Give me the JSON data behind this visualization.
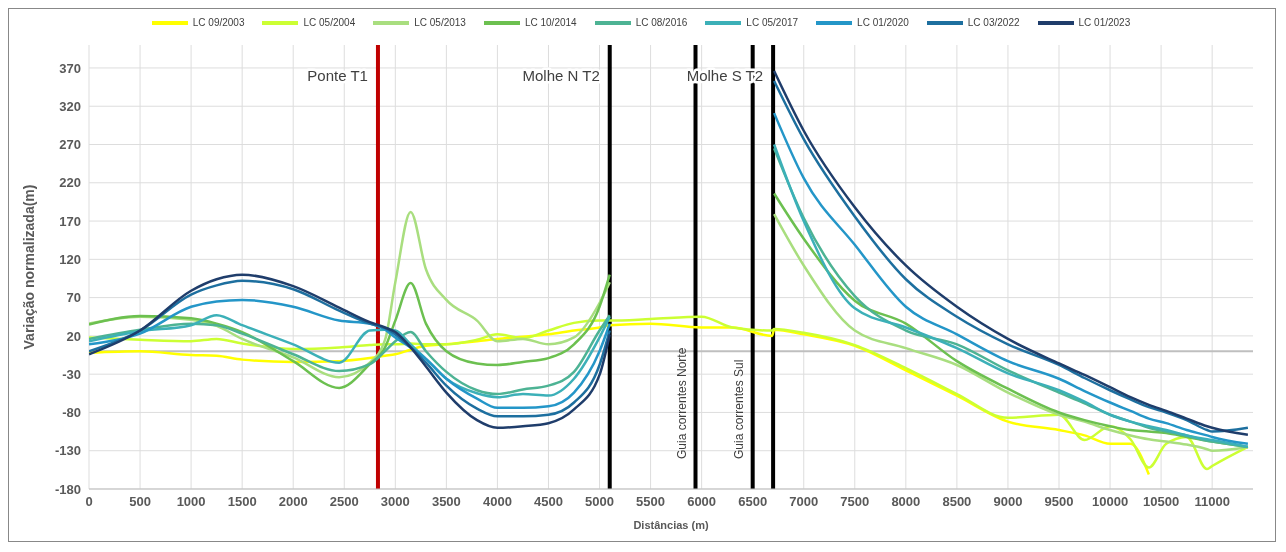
{
  "chart_data": {
    "type": "line",
    "xlabel": "Distâncias (m)",
    "ylabel": "Variação normalizada(m)",
    "x": [
      0,
      500,
      1000,
      1250,
      1500,
      2000,
      2450,
      2750,
      2900,
      3000,
      3150,
      3300,
      3500,
      3800,
      4000,
      4250,
      4500,
      4750,
      5000,
      5100,
      5500,
      6000,
      6300,
      6690,
      6710,
      7000,
      7500,
      8000,
      8500,
      9000,
      9500,
      9750,
      10000,
      10200,
      10380,
      10550,
      10750,
      10950,
      11000,
      11350
    ],
    "series": [
      {
        "name": "LC  09/2003",
        "color": "#ffff00",
        "values": [
          -2,
          0,
          -5,
          -6,
          -11,
          -14,
          -13,
          -9,
          -6,
          -4,
          2,
          7,
          9,
          13,
          16,
          19,
          22,
          27,
          31,
          34,
          36,
          31,
          31,
          20,
          28,
          22,
          7,
          -25,
          -58,
          -92,
          -103,
          -110,
          -121,
          -121,
          -161,
          null,
          null,
          null,
          null,
          null
        ]
      },
      {
        "name": "LC  05/2004",
        "color": "#ccff33",
        "values": [
          18,
          15,
          13,
          16,
          10,
          3,
          5,
          8,
          9,
          9,
          10,
          9,
          9,
          15,
          22,
          17,
          27,
          37,
          40,
          40,
          42,
          45,
          31,
          27,
          29,
          24,
          8,
          -22,
          -56,
          -87,
          -83,
          -116,
          -98,
          -115,
          -152,
          -121,
          -112,
          -154,
          -150,
          -125
        ]
      },
      {
        "name": "LC  05/2013",
        "color": "#a9de7f",
        "values": [
          36,
          45,
          41,
          33,
          16,
          -8,
          -34,
          -15,
          15,
          90,
          182,
          107,
          67,
          40,
          13,
          16,
          9,
          18,
          63,
          90,
          null,
          null,
          null,
          null,
          179,
          112,
          27,
          4,
          -18,
          -54,
          -83,
          -92,
          -103,
          -110,
          -115,
          -118,
          -122,
          -128,
          -130,
          -125
        ]
      },
      {
        "name": "LC  10/2014",
        "color": "#6cc050",
        "values": [
          35,
          46,
          43,
          36,
          25,
          -13,
          -48,
          -17,
          5,
          40,
          89,
          36,
          0,
          -16,
          -18,
          -14,
          -9,
          9,
          58,
          100,
          null,
          null,
          null,
          null,
          206,
          147,
          66,
          36,
          -13,
          -49,
          -80,
          -90,
          -98,
          -103,
          -105,
          -107,
          -112,
          -117,
          -118,
          -125
        ]
      },
      {
        "name": "LC 08/2016",
        "color": "#4db394",
        "values": [
          16,
          28,
          36,
          34,
          23,
          -4,
          -26,
          -17,
          0,
          13,
          25,
          0,
          -27,
          -51,
          -56,
          -50,
          -45,
          -27,
          27,
          47,
          null,
          null,
          null,
          null,
          265,
          174,
          72,
          27,
          9,
          -25,
          -54,
          -68,
          -83,
          -92,
          -100,
          -105,
          -110,
          -117,
          -118,
          -125
        ]
      },
      {
        "name": "LC 05/2017",
        "color": "#3cb0b8",
        "values": [
          13,
          26,
          34,
          47,
          34,
          9,
          -15,
          27,
          28,
          27,
          9,
          -10,
          -36,
          -55,
          -60,
          -56,
          -58,
          -36,
          18,
          45,
          null,
          null,
          null,
          null,
          270,
          170,
          56,
          31,
          4,
          -29,
          -51,
          -66,
          -83,
          -92,
          -98,
          -103,
          -110,
          -115,
          -116,
          -125
        ]
      },
      {
        "name": "LC 01/2020",
        "color": "#2496c8",
        "values": [
          9,
          23,
          58,
          65,
          67,
          58,
          40,
          36,
          28,
          18,
          5,
          -10,
          -36,
          -62,
          -74,
          -74,
          -72,
          -54,
          0,
          36,
          null,
          null,
          null,
          null,
          311,
          226,
          139,
          58,
          22,
          -13,
          -36,
          -52,
          -67,
          -78,
          -88,
          -94,
          -103,
          -110,
          -112,
          -121
        ]
      },
      {
        "name": "LC 03/2022",
        "color": "#1d6f9f",
        "values": [
          0,
          27,
          74,
          86,
          92,
          81,
          53,
          36,
          30,
          22,
          5,
          -15,
          -45,
          -75,
          -85,
          -85,
          -83,
          -67,
          -18,
          27,
          null,
          null,
          null,
          null,
          353,
          277,
          176,
          94,
          45,
          9,
          -18,
          -35,
          -51,
          -63,
          -73,
          -80,
          -90,
          -103,
          -105,
          -100
        ]
      },
      {
        "name": "LC 01/2023",
        "color": "#1f3d6b",
        "values": [
          -4,
          27,
          79,
          94,
          100,
          85,
          57,
          38,
          31,
          25,
          5,
          -20,
          -54,
          -90,
          -100,
          -98,
          -94,
          -76,
          -31,
          22,
          null,
          null,
          null,
          null,
          366,
          288,
          188,
          112,
          58,
          16,
          -16,
          -31,
          -47,
          -60,
          -70,
          -78,
          -88,
          -98,
          -100,
          -109
        ]
      }
    ],
    "xlim": [
      0,
      11400
    ],
    "xticks": [
      0,
      500,
      1000,
      1500,
      2000,
      2500,
      3000,
      3500,
      4000,
      4500,
      5000,
      5500,
      6000,
      6500,
      7000,
      7500,
      8000,
      8500,
      9000,
      9500,
      10000,
      10500,
      11000
    ],
    "ylim": [
      -180,
      400
    ],
    "yticks": [
      -180,
      -130,
      -80,
      -30,
      20,
      70,
      120,
      170,
      220,
      270,
      320,
      370
    ],
    "ref_lines": [
      {
        "axis": "y",
        "value": 0,
        "color": "#bfbfbf"
      },
      {
        "axis": "x",
        "value": 2830,
        "label": "Ponte T1",
        "color": "#c00000"
      },
      {
        "axis": "x",
        "value": 5100,
        "label": "Molhe N T2",
        "color": "#000000"
      },
      {
        "axis": "x",
        "value": 5940,
        "label": "Guia correntes  Norte",
        "color": "#000000"
      },
      {
        "axis": "x",
        "value": 6500,
        "label": "Guia correntes Sul",
        "color": "#000000"
      },
      {
        "axis": "x",
        "value": 6700,
        "label": "Molhe S T2",
        "color": "#000000"
      }
    ],
    "grid": true,
    "legend": "top",
    "marker": "none",
    "line_style": "solid"
  }
}
